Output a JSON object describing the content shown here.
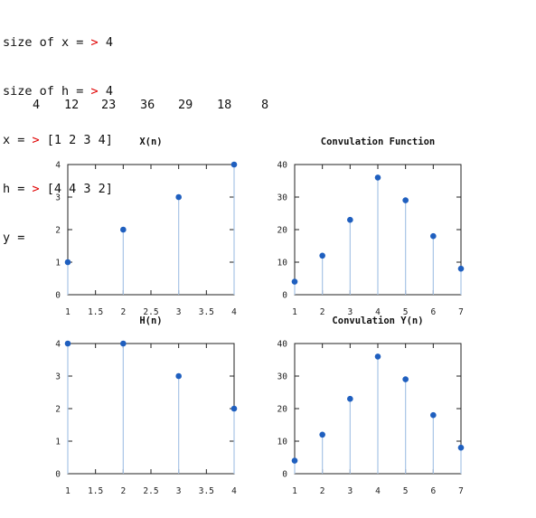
{
  "console": {
    "lines": [
      {
        "label": "size of x = ",
        "prompt": ">",
        "value": " 4"
      },
      {
        "label": "size of h = ",
        "prompt": ">",
        "value": " 4"
      },
      {
        "label": "x = ",
        "prompt": ">",
        "value": " [1 2 3 4]"
      },
      {
        "label": "h = ",
        "prompt": ">",
        "value": " [4 4 3 2]"
      },
      {
        "label": "y =",
        "prompt": "",
        "value": ""
      }
    ],
    "result_values": [
      "4",
      "12",
      "23",
      "36",
      "29",
      "18",
      "8"
    ]
  },
  "colors": {
    "stem": "#a8c4e6",
    "marker": "#1f5fbf",
    "axis": "#222222",
    "prompt": "#e00000"
  },
  "chart_data": [
    {
      "type": "stem",
      "title": "X(n)",
      "x": [
        1,
        2,
        3,
        4
      ],
      "y": [
        1,
        2,
        3,
        4
      ],
      "xlim": [
        1,
        4
      ],
      "ylim": [
        0,
        4
      ],
      "xticks": [
        "1",
        "1.5",
        "2",
        "2.5",
        "3",
        "3.5",
        "4"
      ],
      "yticks": [
        "0",
        "1",
        "2",
        "3",
        "4"
      ]
    },
    {
      "type": "stem",
      "title": "Convulation Function",
      "x": [
        1,
        2,
        3,
        4,
        5,
        6,
        7
      ],
      "y": [
        4,
        12,
        23,
        36,
        29,
        18,
        8
      ],
      "xlim": [
        1,
        7
      ],
      "ylim": [
        0,
        40
      ],
      "xticks": [
        "1",
        "2",
        "3",
        "4",
        "5",
        "6",
        "7"
      ],
      "yticks": [
        "0",
        "10",
        "20",
        "30",
        "40"
      ]
    },
    {
      "type": "stem",
      "title": "H(n)",
      "x": [
        1,
        2,
        3,
        4
      ],
      "y": [
        4,
        4,
        3,
        2
      ],
      "xlim": [
        1,
        4
      ],
      "ylim": [
        0,
        4
      ],
      "xticks": [
        "1",
        "1.5",
        "2",
        "2.5",
        "3",
        "3.5",
        "4"
      ],
      "yticks": [
        "0",
        "1",
        "2",
        "3",
        "4"
      ]
    },
    {
      "type": "stem",
      "title": "Convulation Y(n)",
      "x": [
        1,
        2,
        3,
        4,
        5,
        6,
        7
      ],
      "y": [
        4,
        12,
        23,
        36,
        29,
        18,
        8
      ],
      "xlim": [
        1,
        7
      ],
      "ylim": [
        0,
        40
      ],
      "xticks": [
        "1",
        "2",
        "3",
        "4",
        "5",
        "6",
        "7"
      ],
      "yticks": [
        "0",
        "10",
        "20",
        "30",
        "40"
      ]
    }
  ]
}
